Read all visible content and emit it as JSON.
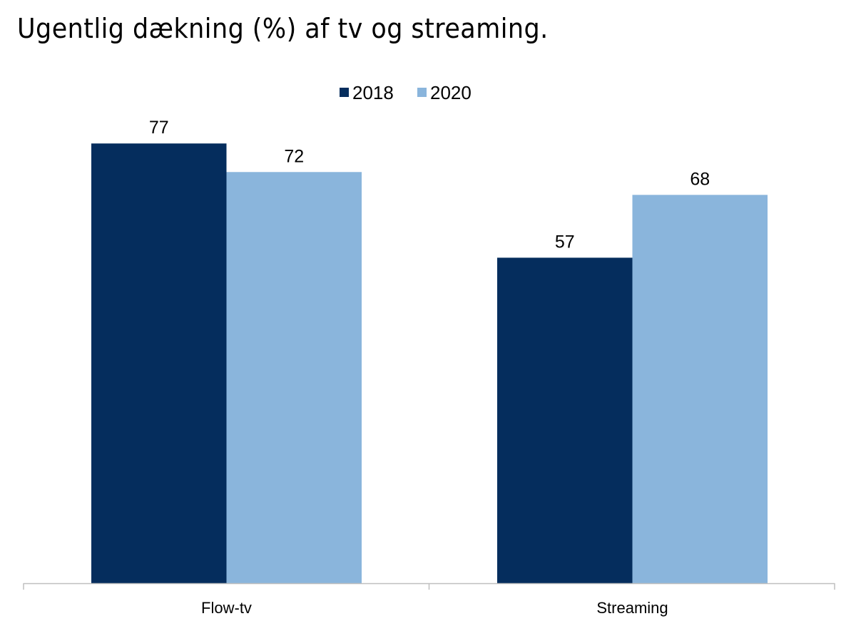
{
  "chart_data": {
    "type": "bar",
    "title": "Ugentlig dækning (%) af tv og streaming.",
    "categories": [
      "Flow-tv",
      "Streaming"
    ],
    "series": [
      {
        "name": "2018",
        "color": "#052d5d",
        "values": [
          77,
          57
        ]
      },
      {
        "name": "2020",
        "color": "#8ab5dc",
        "values": [
          72,
          68
        ]
      }
    ],
    "xlabel": "",
    "ylabel": "",
    "ylim": [
      0,
      100
    ],
    "grid": false,
    "legend": "top-center",
    "axis_color": "#bfbfbf"
  }
}
